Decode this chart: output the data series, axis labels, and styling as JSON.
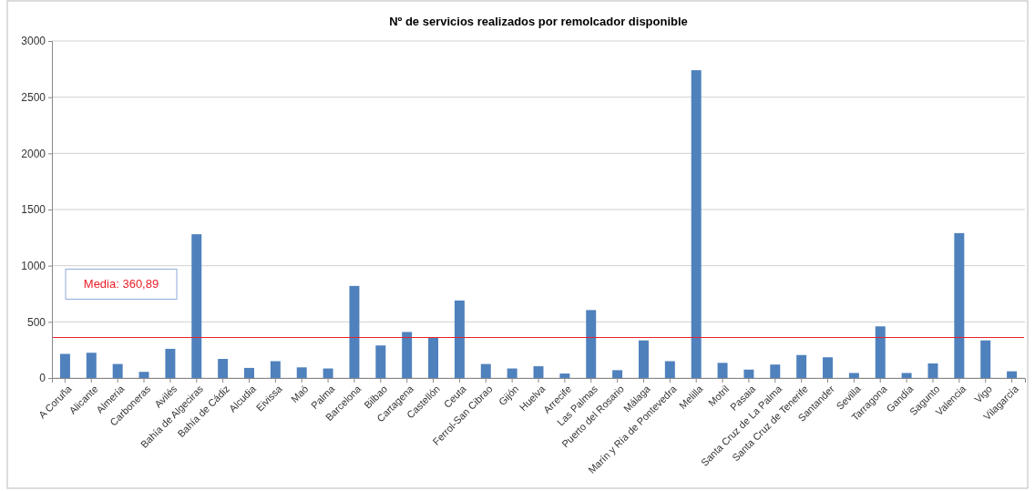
{
  "chart_data": {
    "type": "bar",
    "title": "Nº de servicios realizados por remolcador disponible",
    "categories": [
      "A Coruña",
      "Alicante",
      "Almería",
      "Carboneras",
      "Avilés",
      "Bahía de Algeciras",
      "Bahía de Cádiz",
      "Alcudia",
      "Eivissa",
      "Maó",
      "Palma",
      "Barcelona",
      "Bilbao",
      "Cartagena",
      "Castellón",
      "Ceuta",
      "Ferrol-San Cibrao",
      "Gijón",
      "Huelva",
      "Arrecife",
      "Las Palmas",
      "Puerto del Rosario",
      "Málaga",
      "Marín y Ría de Pontevedra",
      "Melilla",
      "Motril",
      "Pasaia",
      "Santa Cruz de La Palma",
      "Santa Cruz de Tenerife",
      "Santander",
      "Sevilla",
      "Tarragona",
      "Gandía",
      "Sagunto",
      "Valencia",
      "Vigo",
      "Vilagarcía"
    ],
    "values": [
      215,
      225,
      125,
      55,
      260,
      1280,
      170,
      90,
      150,
      95,
      85,
      820,
      290,
      410,
      360,
      690,
      125,
      85,
      105,
      40,
      605,
      70,
      335,
      150,
      2740,
      135,
      75,
      120,
      205,
      185,
      45,
      460,
      45,
      130,
      1290,
      335,
      60
    ],
    "color": "#4f81bd",
    "ylim": [
      0,
      3000
    ],
    "yticks": [
      0,
      500,
      1000,
      1500,
      2000,
      2500,
      3000
    ],
    "grid": "y",
    "ref_lines": [
      {
        "axis": "y",
        "value": 360.89,
        "label": "Media: 360,89",
        "color": "#e8202a"
      }
    ]
  }
}
